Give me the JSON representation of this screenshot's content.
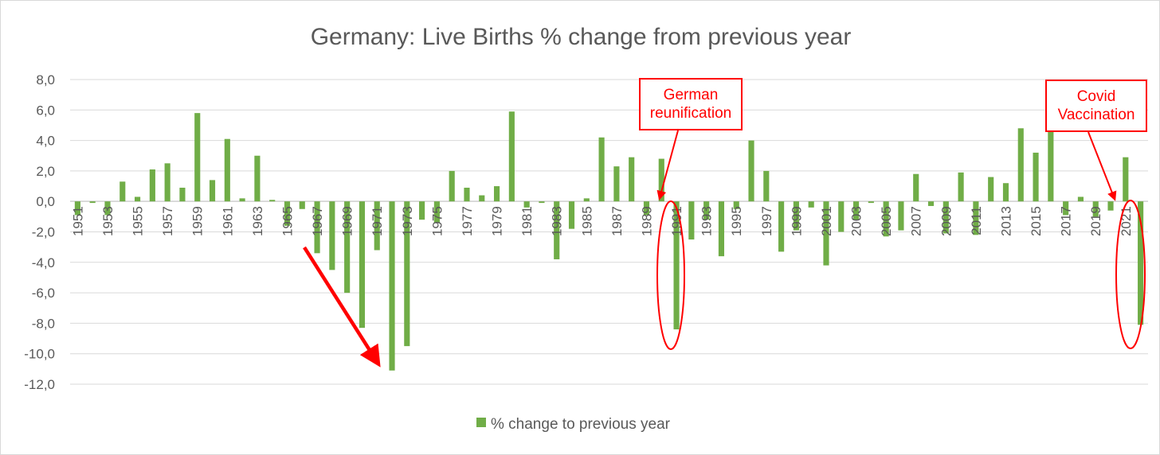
{
  "chart_data": {
    "type": "bar",
    "title": "Germany: Live Births % change from previous year",
    "xlabel": "",
    "ylabel": "",
    "ylim": [
      -12,
      8
    ],
    "yticks": [
      "8,0",
      "6,0",
      "4,0",
      "2,0",
      "0,0",
      "-2,0",
      "-4,0",
      "-6,0",
      "-8,0",
      "-10,0",
      "-12,0"
    ],
    "grid": true,
    "legend_position": "bottom",
    "bar_color": "#70ad47",
    "categories": [
      "1951",
      "1952",
      "1953",
      "1954",
      "1955",
      "1956",
      "1957",
      "1958",
      "1959",
      "1960",
      "1961",
      "1962",
      "1963",
      "1964",
      "1965",
      "1966",
      "1967",
      "1968",
      "1969",
      "1970",
      "1971",
      "1972",
      "1973",
      "1974",
      "1975",
      "1976",
      "1977",
      "1978",
      "1979",
      "1980",
      "1981",
      "1982",
      "1983",
      "1984",
      "1985",
      "1986",
      "1987",
      "1988",
      "1989",
      "1990",
      "1991",
      "1992",
      "1993",
      "1994",
      "1995",
      "1996",
      "1997",
      "1998",
      "1999",
      "2000",
      "2001",
      "2002",
      "2003",
      "2004",
      "2005",
      "2006",
      "2007",
      "2008",
      "2009",
      "2010",
      "2011",
      "2012",
      "2013",
      "2014",
      "2015",
      "2016",
      "2017",
      "2018",
      "2019",
      "2020",
      "2021",
      "2022"
    ],
    "x_tick_labels": [
      "1951",
      "1953",
      "1955",
      "1957",
      "1959",
      "1961",
      "1963",
      "1965",
      "1967",
      "1969",
      "1971",
      "1973",
      "1975",
      "1977",
      "1979",
      "1981",
      "1983",
      "1985",
      "1987",
      "1989",
      "1991",
      "1993",
      "1995",
      "1997",
      "1999",
      "2001",
      "2003",
      "2005",
      "2007",
      "2009",
      "2011",
      "2013",
      "2015",
      "2017",
      "2019",
      "2021"
    ],
    "series": [
      {
        "name": "% change to previous year",
        "values": [
          -0.9,
          -0.1,
          -0.9,
          1.3,
          0.3,
          2.1,
          2.5,
          0.9,
          5.8,
          1.4,
          4.1,
          0.2,
          3.0,
          0.1,
          -1.6,
          -0.5,
          -3.4,
          -4.5,
          -6.0,
          -8.3,
          -3.2,
          -11.1,
          -9.5,
          -1.2,
          -1.4,
          2.0,
          0.9,
          0.4,
          1.0,
          5.9,
          -0.4,
          -0.1,
          -3.8,
          -1.8,
          0.2,
          4.2,
          2.3,
          2.9,
          -0.9,
          2.8,
          -8.4,
          -2.5,
          -1.2,
          -3.6,
          -0.5,
          4.0,
          2.0,
          -3.3,
          -1.9,
          -0.4,
          -4.2,
          -2.0,
          -1.2,
          -0.1,
          -2.3,
          -1.9,
          1.8,
          -0.3,
          -2.1,
          1.9,
          -2.2,
          1.6,
          1.2,
          4.8,
          3.2,
          7.4,
          -0.9,
          0.3,
          -1.0,
          -0.6,
          2.9,
          -8.1
        ]
      }
    ],
    "annotations": [
      {
        "lines": [
          "German",
          "reunification"
        ]
      },
      {
        "lines": [
          "Covid",
          "Vaccination"
        ]
      }
    ],
    "annotation_color": "#ff0000"
  }
}
